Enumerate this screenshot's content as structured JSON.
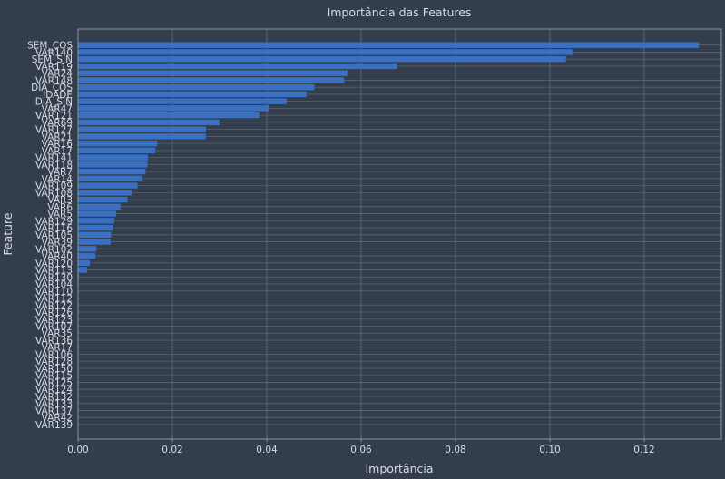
{
  "chart_data": {
    "type": "bar",
    "orientation": "horizontal",
    "title": "Importância das Features",
    "xlabel": "Importância",
    "ylabel": "Feature",
    "xlim": [
      0,
      0.135
    ],
    "x_ticks": [
      "0.00",
      "0.02",
      "0.04",
      "0.06",
      "0.08",
      "0.10",
      "0.12"
    ],
    "grid": true,
    "categories": [
      "SEM_COS",
      "VAR140",
      "SEM_SIN",
      "VAR119",
      "VAR24",
      "VAR148",
      "DIA_COS",
      "IDADE",
      "DIA_SIN",
      "VAR47",
      "VAR121",
      "VAR69",
      "VAR127",
      "VAR21",
      "VAR16",
      "VAR17",
      "VAR141",
      "VAR118",
      "VAR7",
      "VAR14",
      "VAR109",
      "VAR108",
      "VAR3",
      "VAR6",
      "VAR5",
      "VAR129",
      "VAR116",
      "VAR105",
      "VAR39",
      "VAR102",
      "VAR40",
      "VAR120",
      "VAR113",
      "VAR130",
      "VAR104",
      "VAR110",
      "VAR112",
      "VAR122",
      "VAR126",
      "VAR123",
      "VAR107",
      "VAR35",
      "VAR136",
      "VAR17",
      "VAR106",
      "VAR128",
      "VAR150",
      "VAR115",
      "VAR125",
      "VAR124",
      "VAR132",
      "VAR133",
      "VAR137",
      "VAR42",
      "VAR139"
    ],
    "values": [
      0.1316,
      0.1049,
      0.1034,
      0.0676,
      0.0571,
      0.0564,
      0.0501,
      0.0484,
      0.0442,
      0.0404,
      0.0384,
      0.03,
      0.0271,
      0.0271,
      0.0168,
      0.0164,
      0.0148,
      0.0147,
      0.0143,
      0.0136,
      0.0126,
      0.0114,
      0.0105,
      0.009,
      0.0081,
      0.0077,
      0.0074,
      0.007,
      0.0069,
      0.0039,
      0.0037,
      0.0025,
      0.0019,
      0.0002,
      0,
      0,
      0,
      0,
      0,
      0,
      0,
      0,
      0,
      0,
      0,
      0,
      0,
      0,
      0,
      0,
      0,
      0,
      0,
      0,
      0
    ],
    "colors": {
      "bar": "#3a70c4",
      "background": "#333d4c",
      "grid": "#56657a",
      "axis": "#8a95a3",
      "text": "#d6dce4"
    }
  }
}
